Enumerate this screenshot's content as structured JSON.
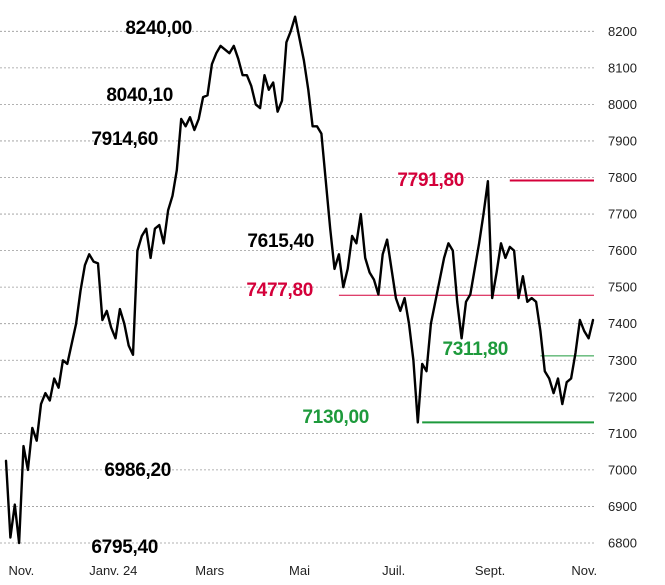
{
  "chart_data": {
    "type": "line",
    "title": "",
    "xlabel": "",
    "ylabel": "",
    "ylim": [
      6780,
      8260
    ],
    "y_ticks": [
      6800,
      6900,
      7000,
      7100,
      7200,
      7300,
      7400,
      7500,
      7600,
      7700,
      7800,
      7900,
      8000,
      8100,
      8200
    ],
    "x_ticks": [
      {
        "label": "Nov.",
        "t": 7
      },
      {
        "label": "Janv. 24",
        "t": 49
      },
      {
        "label": "Mars",
        "t": 93
      },
      {
        "label": "Mai",
        "t": 134
      },
      {
        "label": "Juil.",
        "t": 177
      },
      {
        "label": "Sept.",
        "t": 221
      },
      {
        "label": "Nov.",
        "t": 264
      }
    ],
    "grid": "horizontal dashed",
    "line_color": "#000000",
    "annotations": [
      {
        "text": "8240,00",
        "value": 8240.0,
        "color": "#000000",
        "line": false
      },
      {
        "text": "8040,10",
        "value": 8040.1,
        "color": "#000000",
        "line": false
      },
      {
        "text": "7914,60",
        "value": 7914.6,
        "color": "#000000",
        "line": false
      },
      {
        "text": "7615,40",
        "value": 7615.4,
        "color": "#000000",
        "line": false
      },
      {
        "text": "6986,20",
        "value": 6986.2,
        "color": "#000000",
        "line": false
      },
      {
        "text": "6795,40",
        "value": 6795.4,
        "color": "#000000",
        "line": false
      },
      {
        "text": "7791,80",
        "value": 7791.8,
        "color": "#d4003a",
        "line": true,
        "line_from_t": 230
      },
      {
        "text": "7477,80",
        "value": 7477.8,
        "color": "#d4003a",
        "line": true,
        "line_from_t": 152
      },
      {
        "text": "7311,80",
        "value": 7311.8,
        "color": "#1e9a3c",
        "line": true,
        "line_from_t": 244
      },
      {
        "text": "7130,00",
        "value": 7130.0,
        "color": "#1e9a3c",
        "line": true,
        "line_from_t": 190
      }
    ],
    "series": [
      {
        "points": [
          [
            0,
            7025
          ],
          [
            2,
            6815
          ],
          [
            4,
            6905
          ],
          [
            6,
            6800
          ],
          [
            8,
            7065
          ],
          [
            10,
            7000
          ],
          [
            12,
            7115
          ],
          [
            14,
            7080
          ],
          [
            16,
            7180
          ],
          [
            18,
            7210
          ],
          [
            20,
            7190
          ],
          [
            22,
            7250
          ],
          [
            24,
            7225
          ],
          [
            26,
            7300
          ],
          [
            28,
            7290
          ],
          [
            30,
            7345
          ],
          [
            32,
            7400
          ],
          [
            34,
            7490
          ],
          [
            36,
            7560
          ],
          [
            38,
            7590
          ],
          [
            40,
            7570
          ],
          [
            42,
            7565
          ],
          [
            44,
            7410
          ],
          [
            46,
            7435
          ],
          [
            48,
            7390
          ],
          [
            50,
            7360
          ],
          [
            52,
            7440
          ],
          [
            54,
            7400
          ],
          [
            56,
            7340
          ],
          [
            58,
            7315
          ],
          [
            60,
            7600
          ],
          [
            62,
            7640
          ],
          [
            64,
            7660
          ],
          [
            66,
            7580
          ],
          [
            68,
            7660
          ],
          [
            70,
            7670
          ],
          [
            72,
            7620
          ],
          [
            74,
            7710
          ],
          [
            76,
            7750
          ],
          [
            78,
            7820
          ],
          [
            80,
            7960
          ],
          [
            82,
            7940
          ],
          [
            84,
            7965
          ],
          [
            86,
            7930
          ],
          [
            88,
            7960
          ],
          [
            90,
            8020
          ],
          [
            92,
            8025
          ],
          [
            94,
            8110
          ],
          [
            96,
            8140
          ],
          [
            98,
            8160
          ],
          [
            100,
            8150
          ],
          [
            102,
            8140
          ],
          [
            104,
            8160
          ],
          [
            106,
            8125
          ],
          [
            108,
            8080
          ],
          [
            110,
            8080
          ],
          [
            112,
            8050
          ],
          [
            114,
            8000
          ],
          [
            116,
            7990
          ],
          [
            118,
            8080
          ],
          [
            120,
            8040
          ],
          [
            122,
            8060
          ],
          [
            124,
            7980
          ],
          [
            126,
            8010
          ],
          [
            128,
            8170
          ],
          [
            130,
            8200
          ],
          [
            132,
            8240
          ],
          [
            134,
            8180
          ],
          [
            136,
            8120
          ],
          [
            138,
            8040
          ],
          [
            140,
            7940
          ],
          [
            142,
            7940
          ],
          [
            144,
            7920
          ],
          [
            146,
            7790
          ],
          [
            148,
            7660
          ],
          [
            150,
            7550
          ],
          [
            152,
            7590
          ],
          [
            154,
            7500
          ],
          [
            156,
            7550
          ],
          [
            158,
            7640
          ],
          [
            160,
            7620
          ],
          [
            162,
            7700
          ],
          [
            164,
            7580
          ],
          [
            166,
            7540
          ],
          [
            168,
            7520
          ],
          [
            170,
            7480
          ],
          [
            172,
            7590
          ],
          [
            174,
            7630
          ],
          [
            176,
            7550
          ],
          [
            178,
            7470
          ],
          [
            180,
            7435
          ],
          [
            182,
            7470
          ],
          [
            184,
            7400
          ],
          [
            186,
            7300
          ],
          [
            188,
            7130
          ],
          [
            190,
            7290
          ],
          [
            192,
            7270
          ],
          [
            194,
            7400
          ],
          [
            196,
            7460
          ],
          [
            198,
            7520
          ],
          [
            200,
            7580
          ],
          [
            202,
            7620
          ],
          [
            204,
            7600
          ],
          [
            206,
            7460
          ],
          [
            208,
            7360
          ],
          [
            210,
            7460
          ],
          [
            212,
            7480
          ],
          [
            214,
            7550
          ],
          [
            216,
            7620
          ],
          [
            218,
            7700
          ],
          [
            220,
            7790
          ],
          [
            222,
            7470
          ],
          [
            224,
            7540
          ],
          [
            226,
            7620
          ],
          [
            228,
            7580
          ],
          [
            230,
            7610
          ],
          [
            232,
            7600
          ],
          [
            234,
            7470
          ],
          [
            236,
            7530
          ],
          [
            238,
            7460
          ],
          [
            240,
            7470
          ],
          [
            242,
            7460
          ],
          [
            244,
            7380
          ],
          [
            246,
            7270
          ],
          [
            248,
            7250
          ],
          [
            250,
            7210
          ],
          [
            252,
            7250
          ],
          [
            254,
            7180
          ],
          [
            256,
            7240
          ],
          [
            258,
            7250
          ],
          [
            260,
            7320
          ],
          [
            262,
            7410
          ],
          [
            264,
            7380
          ],
          [
            266,
            7360
          ],
          [
            268,
            7410
          ]
        ]
      }
    ]
  }
}
